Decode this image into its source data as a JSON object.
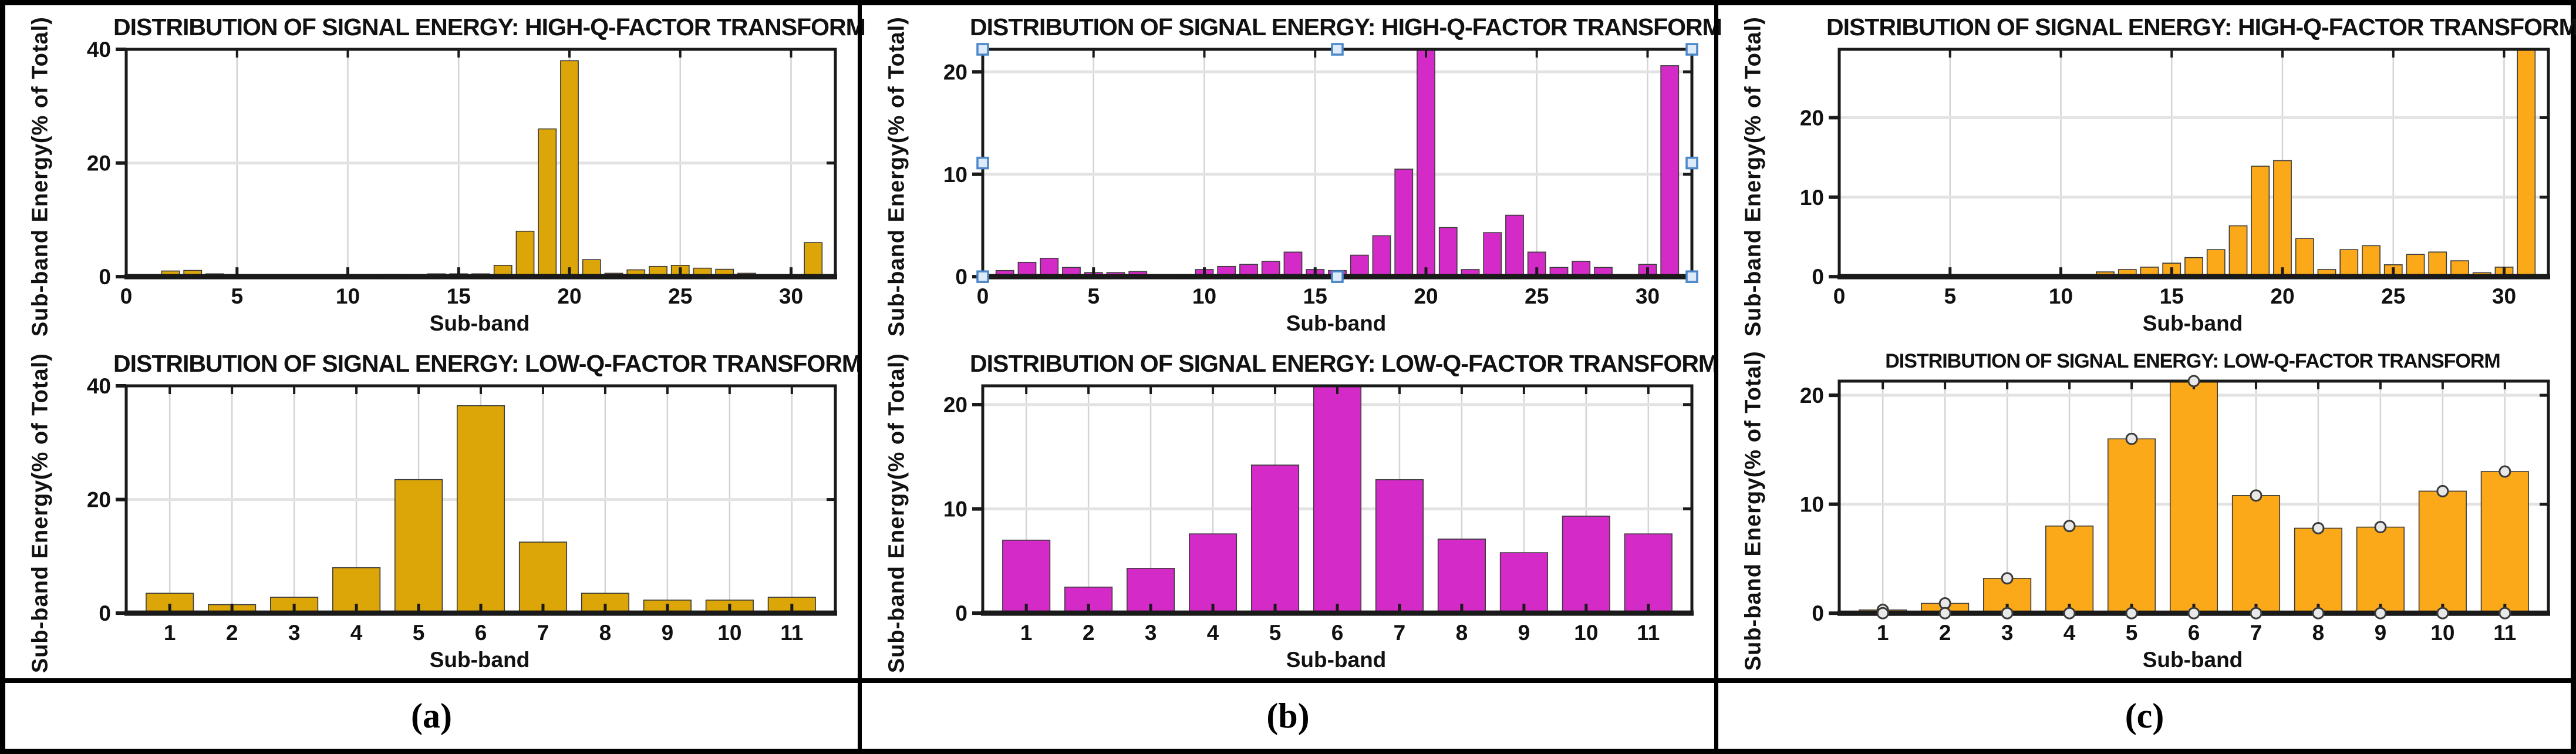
{
  "panels": [
    {
      "label": "(a)",
      "color": "#DCA609"
    },
    {
      "label": "(b)",
      "color": "#D42BC8"
    },
    {
      "label": "(c)",
      "color": "#FBA919"
    }
  ],
  "chart_data": [
    {
      "type": "bar",
      "panel": "a",
      "position": "top",
      "title": "DISTRIBUTION OF SIGNAL ENERGY: HIGH-Q-FACTOR TRANSFORM",
      "ylabel_line1": "Sub-band Energy",
      "ylabel_line2": "(% of Total)",
      "xlabel": "Sub-band",
      "color": "#DCA609",
      "xlim": [
        0,
        32
      ],
      "xticks": [
        0,
        5,
        10,
        15,
        20,
        25,
        30
      ],
      "ylim": [
        0,
        40
      ],
      "yticks": [
        0,
        20,
        40
      ],
      "bar_width": 0.8,
      "grid": true,
      "x": [
        2,
        3,
        4,
        10,
        12,
        13,
        14,
        15,
        16,
        17,
        18,
        19,
        20,
        21,
        22,
        23,
        24,
        25,
        26,
        27,
        28,
        30,
        31
      ],
      "values": [
        1.0,
        1.1,
        0.5,
        0.2,
        0.4,
        0.3,
        0.5,
        0.5,
        0.5,
        2.0,
        8.0,
        26.0,
        38.0,
        3.0,
        0.6,
        1.2,
        1.8,
        2.0,
        1.5,
        1.3,
        0.6,
        0.3,
        6.0
      ],
      "markers": false,
      "selection_handles": false,
      "clipped_bars": []
    },
    {
      "type": "bar",
      "panel": "a",
      "position": "bottom",
      "title": "DISTRIBUTION OF SIGNAL ENERGY: LOW-Q-FACTOR TRANSFORM",
      "ylabel_line1": "Sub-band Energy",
      "ylabel_line2": "(% of Total)",
      "xlabel": "Sub-band",
      "color": "#DCA609",
      "xlim": [
        0.3,
        11.7
      ],
      "xticks": [
        1,
        2,
        3,
        4,
        5,
        6,
        7,
        8,
        9,
        10,
        11
      ],
      "ylim": [
        0,
        40
      ],
      "yticks": [
        0,
        20,
        40
      ],
      "bar_width": 0.76,
      "grid": true,
      "x": [
        1,
        2,
        3,
        4,
        5,
        6,
        7,
        8,
        9,
        10,
        11
      ],
      "values": [
        3.5,
        1.5,
        2.8,
        8.0,
        23.5,
        36.5,
        12.5,
        3.5,
        2.3,
        2.3,
        2.8
      ],
      "markers": false,
      "selection_handles": false,
      "clipped_bars": []
    },
    {
      "type": "bar",
      "panel": "b",
      "position": "top",
      "title": "DISTRIBUTION OF SIGNAL ENERGY: HIGH-Q-FACTOR TRANSFORM",
      "ylabel_line1": "Sub-band Energy",
      "ylabel_line2": "(% of Total)",
      "xlabel": "Sub-band",
      "color": "#D42BC8",
      "xlim": [
        0,
        32
      ],
      "xticks": [
        0,
        5,
        10,
        15,
        20,
        25,
        30
      ],
      "ylim": [
        0,
        22.2
      ],
      "yticks": [
        0,
        10,
        20
      ],
      "bar_width": 0.8,
      "grid": true,
      "x": [
        1,
        2,
        3,
        4,
        5,
        6,
        7,
        8,
        9,
        10,
        11,
        12,
        13,
        14,
        15,
        16,
        17,
        18,
        19,
        20,
        21,
        22,
        23,
        24,
        25,
        26,
        27,
        28,
        29,
        30,
        31
      ],
      "values": [
        0.6,
        1.4,
        1.8,
        0.9,
        0.4,
        0.4,
        0.5,
        0.15,
        0.2,
        0.7,
        1.0,
        1.2,
        1.5,
        2.4,
        0.7,
        0.6,
        2.1,
        4.0,
        10.5,
        22.2,
        4.8,
        0.7,
        4.3,
        6.0,
        2.4,
        0.9,
        1.5,
        0.9,
        0.15,
        1.2,
        20.6
      ],
      "markers": false,
      "selection_handles": true,
      "clipped_bars": [
        20
      ]
    },
    {
      "type": "bar",
      "panel": "b",
      "position": "bottom",
      "title": "DISTRIBUTION OF SIGNAL ENERGY: LOW-Q-FACTOR TRANSFORM",
      "ylabel_line1": "Sub-band Energy",
      "ylabel_line2": "(% of Total)",
      "xlabel": "Sub-band",
      "color": "#D42BC8",
      "xlim": [
        0.3,
        11.7
      ],
      "xticks": [
        1,
        2,
        3,
        4,
        5,
        6,
        7,
        8,
        9,
        10,
        11
      ],
      "ylim": [
        0,
        21.8
      ],
      "yticks": [
        0,
        10,
        20
      ],
      "bar_width": 0.76,
      "grid": true,
      "x": [
        1,
        2,
        3,
        4,
        5,
        6,
        7,
        8,
        9,
        10,
        11
      ],
      "values": [
        7.0,
        2.5,
        4.3,
        7.6,
        14.2,
        21.8,
        12.8,
        7.1,
        5.8,
        9.3,
        7.6
      ],
      "markers": false,
      "selection_handles": false,
      "clipped_bars": [
        6
      ]
    },
    {
      "type": "bar",
      "panel": "c",
      "position": "top",
      "title": "DISTRIBUTION OF SIGNAL ENERGY: HIGH-Q-FACTOR TRANSFORM",
      "ylabel_line1": "Sub-band Energy",
      "ylabel_line2": "(% of Total)",
      "xlabel": "Sub-band",
      "color": "#FBA919",
      "xlim": [
        0,
        32
      ],
      "xticks": [
        0,
        5,
        10,
        15,
        20,
        25,
        30
      ],
      "ylim": [
        0,
        28.6
      ],
      "yticks": [
        0,
        10,
        20
      ],
      "bar_width": 0.8,
      "grid": true,
      "x": [
        11,
        12,
        13,
        14,
        15,
        16,
        17,
        18,
        19,
        20,
        21,
        22,
        23,
        24,
        25,
        26,
        27,
        28,
        29,
        30,
        31
      ],
      "values": [
        0.2,
        0.6,
        0.9,
        1.2,
        1.7,
        2.4,
        3.4,
        6.4,
        13.9,
        14.6,
        4.8,
        0.9,
        3.4,
        3.9,
        1.5,
        2.8,
        3.1,
        2.0,
        0.5,
        1.2,
        28.6
      ],
      "markers": false,
      "selection_handles": false,
      "clipped_bars": [
        31
      ]
    },
    {
      "type": "bar",
      "panel": "c",
      "position": "bottom",
      "title": "DISTRIBUTION OF SIGNAL ENERGY: LOW-Q-FACTOR TRANSFORM",
      "ylabel_line1": "Sub-band Energy",
      "ylabel_line2": "(% of Total)",
      "xlabel": "Sub-band",
      "color": "#FBA919",
      "xlim": [
        0.3,
        11.7
      ],
      "xticks": [
        1,
        2,
        3,
        4,
        5,
        6,
        7,
        8,
        9,
        10,
        11
      ],
      "ylim": [
        0,
        21.3
      ],
      "yticks": [
        0,
        10,
        20
      ],
      "bar_width": 0.76,
      "grid": true,
      "x": [
        1,
        2,
        3,
        4,
        5,
        6,
        7,
        8,
        9,
        10,
        11
      ],
      "values": [
        0.3,
        0.9,
        3.2,
        8.0,
        16.0,
        21.3,
        10.8,
        7.8,
        7.9,
        11.2,
        13.0
      ],
      "markers": true,
      "selection_handles": false,
      "clipped_bars": [
        6
      ]
    }
  ]
}
